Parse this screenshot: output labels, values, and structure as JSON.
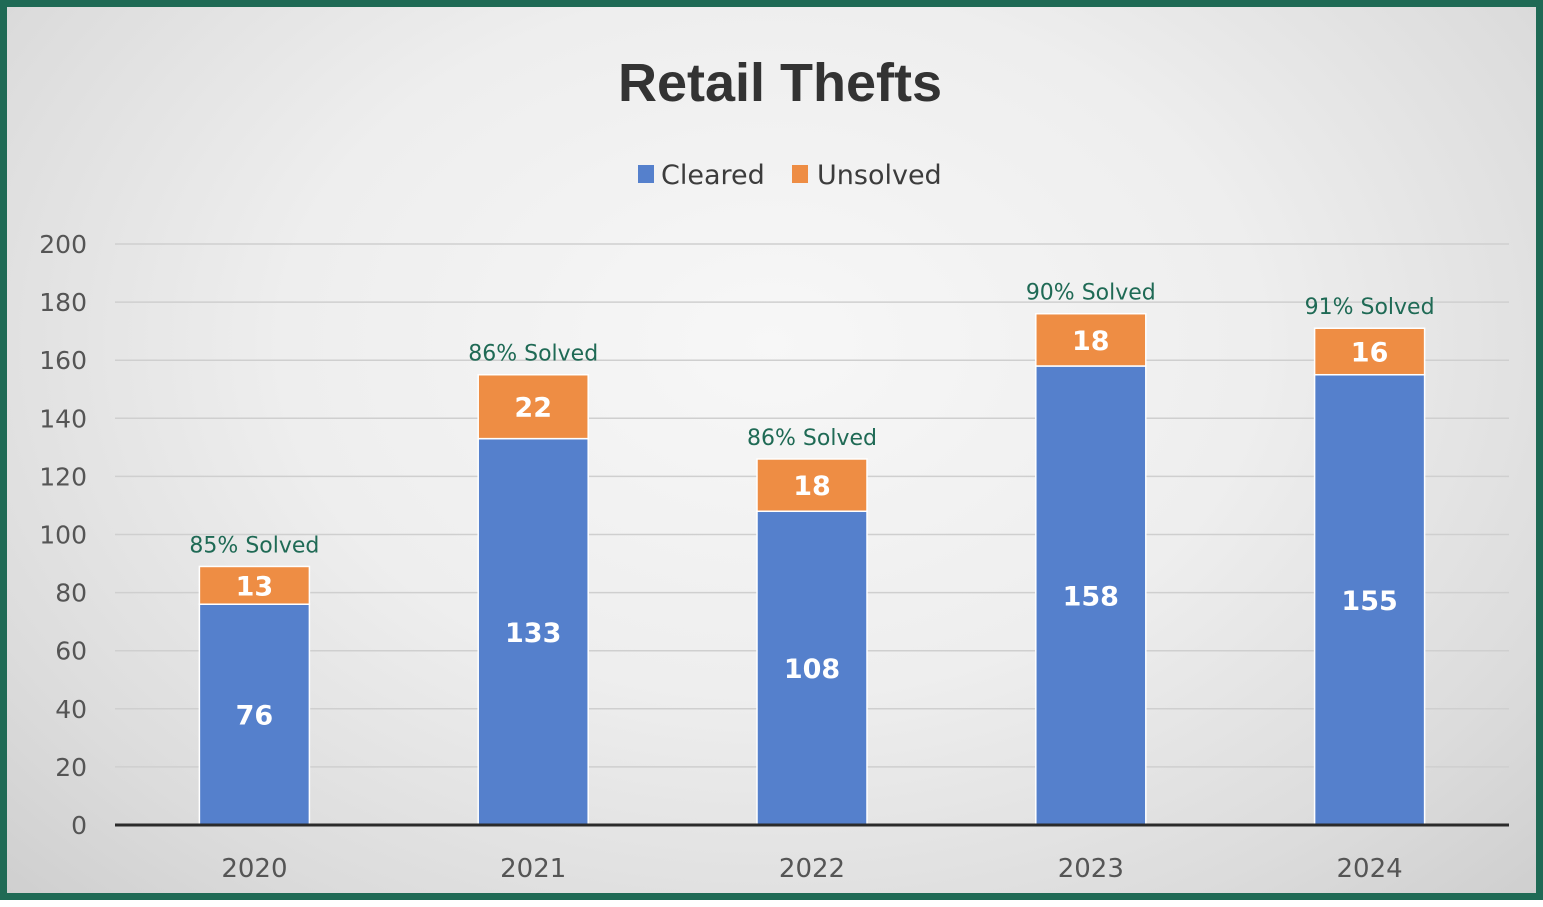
{
  "chart_data": {
    "type": "bar",
    "stacked": true,
    "title": "Retail Thefts",
    "categories": [
      "2020",
      "2021",
      "2022",
      "2023",
      "2024"
    ],
    "series": [
      {
        "name": "Cleared",
        "color": "#5580cc",
        "values": [
          76,
          133,
          108,
          158,
          155
        ]
      },
      {
        "name": "Unsolved",
        "color": "#ee8d44",
        "values": [
          13,
          22,
          18,
          18,
          16
        ]
      }
    ],
    "annotations": [
      "85% Solved",
      "86% Solved",
      "86% Solved",
      "90% Solved",
      "91% Solved"
    ],
    "ylim": [
      0,
      200
    ],
    "yticks": [
      0,
      20,
      40,
      60,
      80,
      100,
      120,
      140,
      160,
      180,
      200
    ],
    "grid": true,
    "legend_position": "top-center"
  }
}
